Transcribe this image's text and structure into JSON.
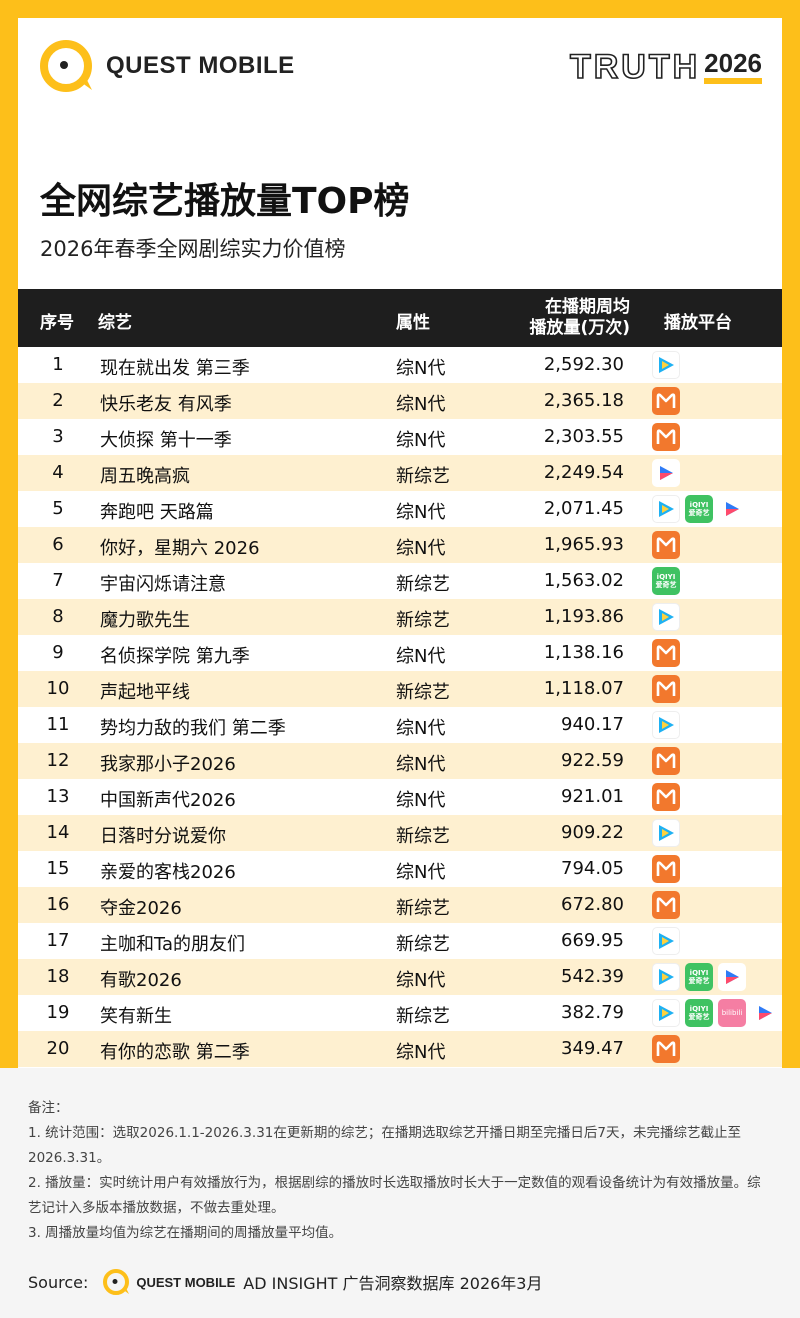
{
  "brand": {
    "logo_text": "QUEST MOBILE",
    "badge_word": "TRUTH",
    "badge_year": "2026",
    "accent": "#fdbf1a"
  },
  "title": "全网综艺播放量TOP榜",
  "subtitle": "2026年春季全网剧综实力价值榜",
  "table": {
    "headers": {
      "rank": "序号",
      "name": "综艺",
      "attr": "属性",
      "vol_line1": "在播期周均",
      "vol_line2": "播放量(万次)",
      "platform": "播放平台"
    },
    "rows": [
      {
        "rank": "1",
        "name": "现在就出发 第三季",
        "attr": "综N代",
        "vol": "2,592.30",
        "platforms": [
          "tencent"
        ]
      },
      {
        "rank": "2",
        "name": "快乐老友 有风季",
        "attr": "综N代",
        "vol": "2,365.18",
        "platforms": [
          "mango"
        ]
      },
      {
        "rank": "3",
        "name": "大侦探 第十一季",
        "attr": "综N代",
        "vol": "2,303.55",
        "platforms": [
          "mango"
        ]
      },
      {
        "rank": "4",
        "name": "周五晚高疯",
        "attr": "新综艺",
        "vol": "2,249.54",
        "platforms": [
          "youku"
        ]
      },
      {
        "rank": "5",
        "name": "奔跑吧 天路篇",
        "attr": "综N代",
        "vol": "2,071.45",
        "platforms": [
          "tencent",
          "iqiyi",
          "youku"
        ]
      },
      {
        "rank": "6",
        "name": "你好，星期六 2026",
        "attr": "综N代",
        "vol": "1,965.93",
        "platforms": [
          "mango"
        ]
      },
      {
        "rank": "7",
        "name": "宇宙闪烁请注意",
        "attr": "新综艺",
        "vol": "1,563.02",
        "platforms": [
          "iqiyi"
        ]
      },
      {
        "rank": "8",
        "name": "魔力歌先生",
        "attr": "新综艺",
        "vol": "1,193.86",
        "platforms": [
          "tencent"
        ]
      },
      {
        "rank": "9",
        "name": "名侦探学院 第九季",
        "attr": "综N代",
        "vol": "1,138.16",
        "platforms": [
          "mango"
        ]
      },
      {
        "rank": "10",
        "name": "声起地平线",
        "attr": "新综艺",
        "vol": "1,118.07",
        "platforms": [
          "mango"
        ]
      },
      {
        "rank": "11",
        "name": "势均力敌的我们 第二季",
        "attr": "综N代",
        "vol": "940.17",
        "platforms": [
          "tencent"
        ]
      },
      {
        "rank": "12",
        "name": "我家那小子2026",
        "attr": "综N代",
        "vol": "922.59",
        "platforms": [
          "mango"
        ]
      },
      {
        "rank": "13",
        "name": "中国新声代2026",
        "attr": "综N代",
        "vol": "921.01",
        "platforms": [
          "mango"
        ]
      },
      {
        "rank": "14",
        "name": "日落时分说爱你",
        "attr": "新综艺",
        "vol": "909.22",
        "platforms": [
          "tencent"
        ]
      },
      {
        "rank": "15",
        "name": "亲爱的客栈2026",
        "attr": "综N代",
        "vol": "794.05",
        "platforms": [
          "mango"
        ]
      },
      {
        "rank": "16",
        "name": "夺金2026",
        "attr": "新综艺",
        "vol": "672.80",
        "platforms": [
          "mango"
        ]
      },
      {
        "rank": "17",
        "name": "主咖和Ta的朋友们",
        "attr": "新综艺",
        "vol": "669.95",
        "platforms": [
          "tencent"
        ]
      },
      {
        "rank": "18",
        "name": "有歌2026",
        "attr": "综N代",
        "vol": "542.39",
        "platforms": [
          "tencent",
          "iqiyi",
          "youku"
        ]
      },
      {
        "rank": "19",
        "name": "笑有新生",
        "attr": "新综艺",
        "vol": "382.79",
        "platforms": [
          "tencent",
          "iqiyi",
          "bilibili",
          "youku"
        ]
      },
      {
        "rank": "20",
        "name": "有你的恋歌 第二季",
        "attr": "综N代",
        "vol": "349.47",
        "platforms": [
          "mango"
        ]
      }
    ]
  },
  "platform_styles": {
    "tencent": "#1fb1f2",
    "mango": "#f2782d",
    "iqiyi": "#3fc262",
    "youku": "#2f7bf6",
    "bilibili": "#f57ea3",
    "iqiyi_text1": "iQIYI",
    "iqiyi_text2": "爱奇艺",
    "bilibili_text": "bilibili"
  },
  "notes": {
    "heading": "备注：",
    "items": [
      "1. 统计范围：选取2026.1.1-2026.3.31在更新期的综艺；在播期选取综艺开播日期至完播日后7天，未完播综艺截止至2026.3.31。",
      "2. 播放量：实时统计用户有效播放行为，根据剧综的播放时长选取播放时长大于一定数值的观看设备统计为有效播放量。综艺记计入多版本播放数据，不做去重处理。",
      "3. 周播放量均值为综艺在播期间的周播放量平均值。"
    ]
  },
  "source": {
    "label": "Source:",
    "logo_text": "QUEST MOBILE",
    "text": "AD INSIGHT 广告洞察数据库 2026年3月"
  }
}
